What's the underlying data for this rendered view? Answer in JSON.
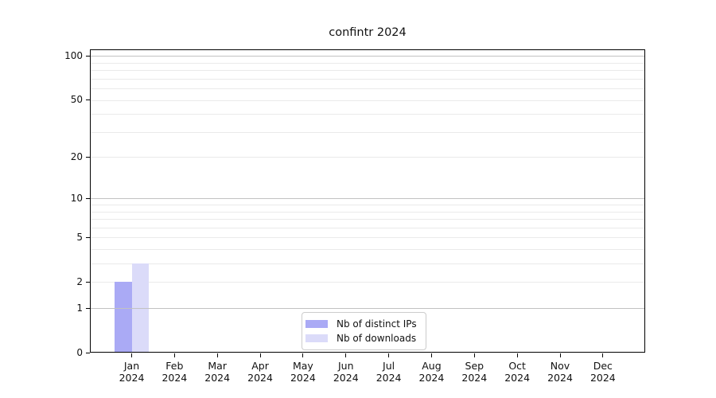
{
  "chart_data": {
    "type": "bar",
    "title": "confintr 2024",
    "categories": [
      "Jan",
      "Feb",
      "Mar",
      "Apr",
      "May",
      "Jun",
      "Jul",
      "Aug",
      "Sep",
      "Oct",
      "Nov",
      "Dec"
    ],
    "category_year": "2024",
    "series": [
      {
        "name": "Nb of distinct IPs",
        "color": "#aaaaf5",
        "values": [
          2,
          0,
          0,
          0,
          0,
          0,
          0,
          0,
          0,
          0,
          0,
          0
        ]
      },
      {
        "name": "Nb of downloads",
        "color": "#dbdbf9",
        "values": [
          3,
          0,
          0,
          0,
          0,
          0,
          0,
          0,
          0,
          0,
          0,
          0
        ]
      }
    ],
    "xlabel": "",
    "ylabel": "",
    "yscale": "log1p",
    "yticks": [
      0,
      1,
      2,
      5,
      10,
      20,
      50,
      100
    ],
    "ylim": [
      0,
      111
    ],
    "grid": {
      "major": [
        1,
        10,
        100
      ],
      "minor": [
        2,
        3,
        4,
        5,
        6,
        7,
        8,
        9,
        20,
        30,
        40,
        50,
        60,
        70,
        80,
        90
      ]
    },
    "legend_position": "lower center",
    "colors": {
      "grid_major": "#c2c2c2",
      "grid_minor": "#eaeaea",
      "axis": "#000000",
      "background": "#ffffff"
    }
  }
}
